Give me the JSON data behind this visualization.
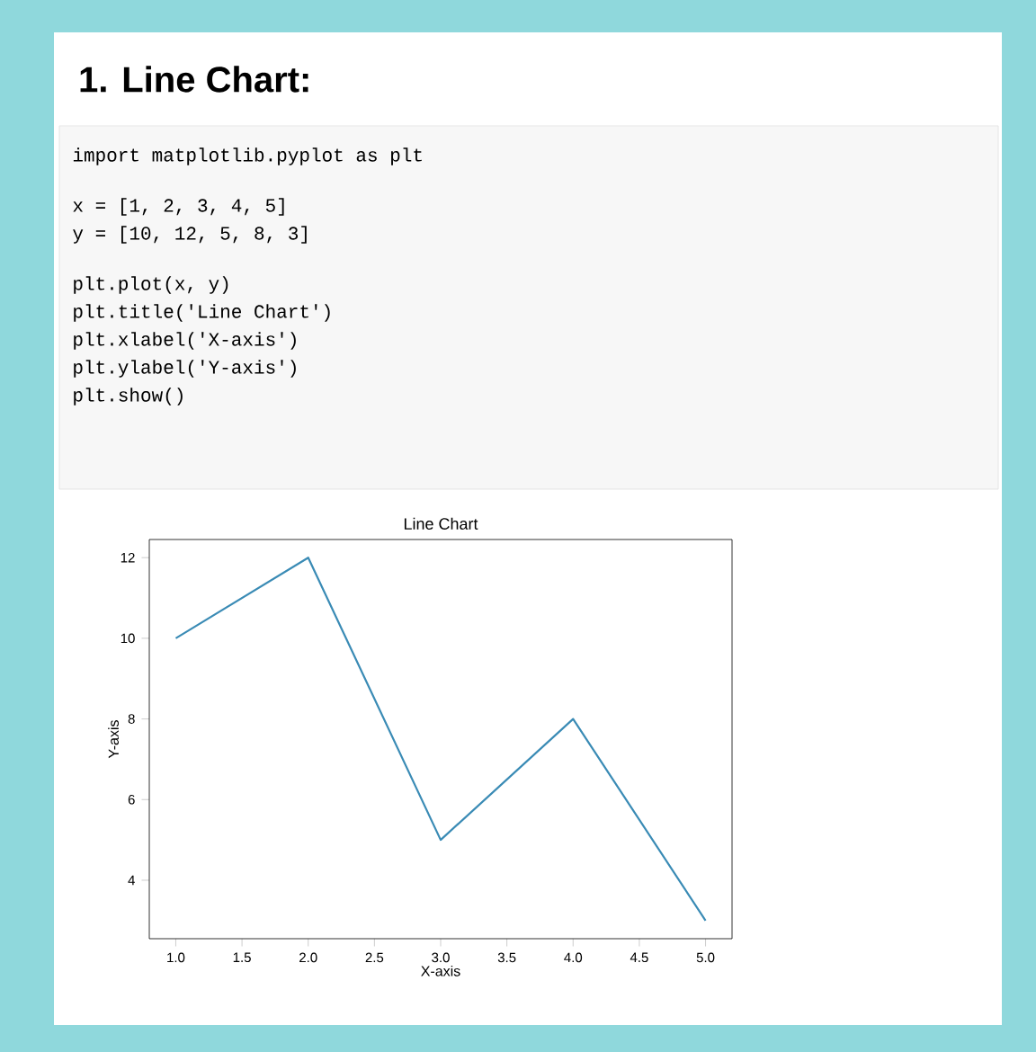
{
  "chart_data": {
    "type": "line",
    "title": "Line Chart",
    "xlabel": "X-axis",
    "ylabel": "Y-axis",
    "x": [
      1,
      2,
      3,
      4,
      5
    ],
    "series": [
      {
        "color": "#3a8bb5",
        "values": [
          10,
          12,
          5,
          8,
          3
        ]
      }
    ],
    "xlim": [
      0.8,
      5.2
    ],
    "ylim": [
      2.55,
      12.45
    ],
    "xticks": [
      {
        "value": 1,
        "label": "1.0"
      },
      {
        "value": 1.5,
        "label": "1.5"
      },
      {
        "value": 2,
        "label": "2.0"
      },
      {
        "value": 2.5,
        "label": "2.5"
      },
      {
        "value": 3,
        "label": "3.0"
      },
      {
        "value": 3.5,
        "label": "3.5"
      },
      {
        "value": 4,
        "label": "4.0"
      },
      {
        "value": 4.5,
        "label": "4.5"
      },
      {
        "value": 5,
        "label": "5.0"
      }
    ],
    "yticks": [
      4,
      6,
      8,
      10,
      12
    ],
    "annotations": [
      "1. Line Chart:",
      "import matplotlib.pyplot as plt",
      "x = [1, 2, 3, 4, 5]",
      "y = [10, 12, 5, 8, 3]",
      "plt.plot(x, y)",
      "plt.title('Line Chart')",
      "plt.xlabel('X-axis')",
      "plt.ylabel('Y-axis')",
      "plt.show()"
    ]
  }
}
